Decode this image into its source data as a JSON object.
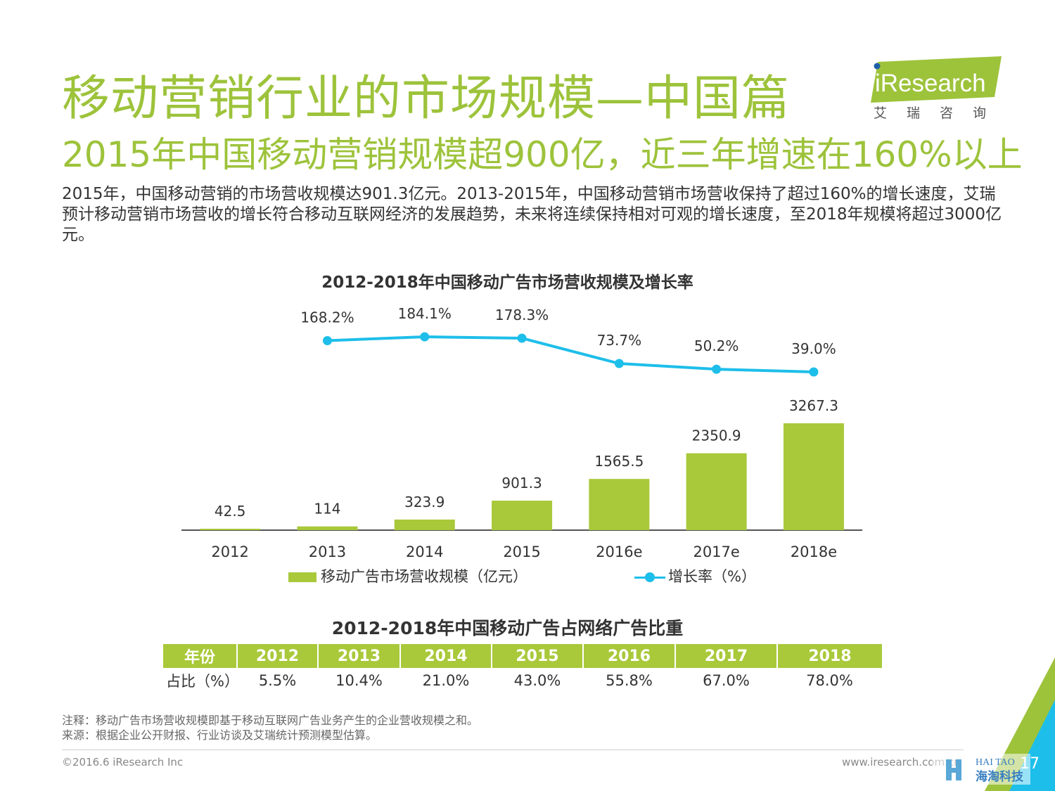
{
  "header": {
    "title": "移动营销行业的市场规模—中国篇",
    "subtitle": "2015年中国移动营销规模超900亿，近三年增速在160%以上",
    "logo_text": "iResearch",
    "logo_cn": "艾瑞咨询"
  },
  "body": {
    "paragraph": "2015年，中国移动营销的市场营收规模达901.3亿元。2013-2015年，中国移动营销市场营收保持了超过160%的增长速度，艾瑞预计移动营销市场营收的增长符合移动互联网经济的发展趋势，未来将连续保持相对可观的增长速度，至2018年规模将超过3000亿元。"
  },
  "chart_data": [
    {
      "type": "bar",
      "title": "2012-2018年中国移动广告市场营收规模及增长率",
      "categories": [
        "2012",
        "2013",
        "2014",
        "2015",
        "2016e",
        "2017e",
        "2018e"
      ],
      "series": [
        {
          "name": "移动广告市场营收规模（亿元）",
          "kind": "bar",
          "color": "#a9c93a",
          "values": [
            42.5,
            114,
            323.9,
            901.3,
            1565.5,
            2350.9,
            3267.3
          ],
          "labels": [
            "42.5",
            "114",
            "323.9",
            "901.3",
            "1565.5",
            "2350.9",
            "3267.3"
          ]
        },
        {
          "name": "增长率（%）",
          "kind": "line",
          "color": "#1ebeea",
          "values": [
            null,
            168.2,
            184.1,
            178.3,
            73.7,
            50.2,
            39.0
          ],
          "labels": [
            "",
            "168.2%",
            "184.1%",
            "178.3%",
            "73.7%",
            "50.2%",
            "39.0%"
          ]
        }
      ],
      "legend_position": "bottom",
      "grid": false
    },
    {
      "type": "table",
      "title": "2012-2018年中国移动广告占网络广告比重",
      "columns": [
        "年份",
        "2012",
        "2013",
        "2014",
        "2015",
        "2016",
        "2017",
        "2018"
      ],
      "rows": [
        [
          "占比（%）",
          "5.5%",
          "10.4%",
          "21.0%",
          "43.0%",
          "55.8%",
          "67.0%",
          "78.0%"
        ]
      ]
    }
  ],
  "footer": {
    "note": "注释：移动广告市场营收规模即基于移动互联网广告业务产生的企业营收规模之和。",
    "source": "来源：根据企业公开财报、行业访谈及艾瑞统计预测模型估算。",
    "copyright": "©2016.6 iResearch Inc",
    "website": "www.iresearch.com.cn",
    "page_number": "17",
    "watermark_en": "HAI TAO",
    "watermark_cn": "海淘科技"
  },
  "colors": {
    "accent": "#9dc33b",
    "bar": "#a9c93a",
    "line": "#1ebeea"
  }
}
